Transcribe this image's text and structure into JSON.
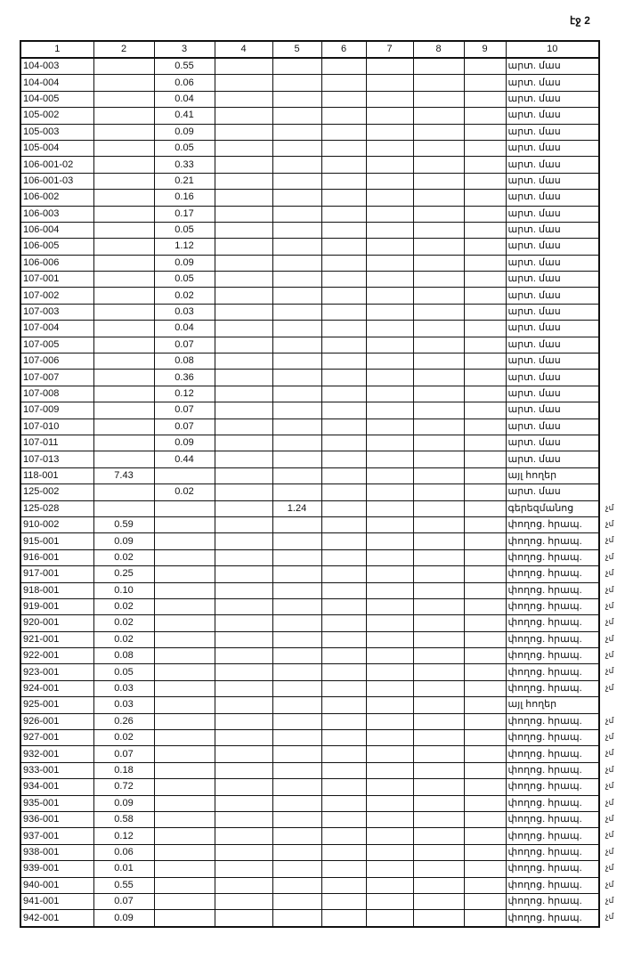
{
  "page_label": "էջ 2",
  "columns": [
    "1",
    "2",
    "3",
    "4",
    "5",
    "6",
    "7",
    "8",
    "9",
    "10"
  ],
  "rows": [
    [
      "104-003",
      "",
      "0.55",
      "",
      "",
      "",
      "",
      "",
      "",
      "արտ. մաս",
      ""
    ],
    [
      "104-004",
      "",
      "0.06",
      "",
      "",
      "",
      "",
      "",
      "",
      "արտ. մաս",
      ""
    ],
    [
      "104-005",
      "",
      "0.04",
      "",
      "",
      "",
      "",
      "",
      "",
      "արտ. մաս",
      ""
    ],
    [
      "105-002",
      "",
      "0.41",
      "",
      "",
      "",
      "",
      "",
      "",
      "արտ. մաս",
      ""
    ],
    [
      "105-003",
      "",
      "0.09",
      "",
      "",
      "",
      "",
      "",
      "",
      "արտ. մաս",
      ""
    ],
    [
      "105-004",
      "",
      "0.05",
      "",
      "",
      "",
      "",
      "",
      "",
      "արտ. մաս",
      ""
    ],
    [
      "106-001-02",
      "",
      "0.33",
      "",
      "",
      "",
      "",
      "",
      "",
      "արտ. մաս",
      ""
    ],
    [
      "106-001-03",
      "",
      "0.21",
      "",
      "",
      "",
      "",
      "",
      "",
      "արտ. մաս",
      ""
    ],
    [
      "106-002",
      "",
      "0.16",
      "",
      "",
      "",
      "",
      "",
      "",
      "արտ. մաս",
      ""
    ],
    [
      "106-003",
      "",
      "0.17",
      "",
      "",
      "",
      "",
      "",
      "",
      "արտ. մաս",
      ""
    ],
    [
      "106-004",
      "",
      "0.05",
      "",
      "",
      "",
      "",
      "",
      "",
      "արտ. մաս",
      ""
    ],
    [
      "106-005",
      "",
      "1.12",
      "",
      "",
      "",
      "",
      "",
      "",
      "արտ. մաս",
      ""
    ],
    [
      "106-006",
      "",
      "0.09",
      "",
      "",
      "",
      "",
      "",
      "",
      "արտ. մաս",
      ""
    ],
    [
      "107-001",
      "",
      "0.05",
      "",
      "",
      "",
      "",
      "",
      "",
      "արտ. մաս",
      ""
    ],
    [
      "107-002",
      "",
      "0.02",
      "",
      "",
      "",
      "",
      "",
      "",
      "արտ. մաս",
      ""
    ],
    [
      "107-003",
      "",
      "0.03",
      "",
      "",
      "",
      "",
      "",
      "",
      "արտ. մաս",
      ""
    ],
    [
      "107-004",
      "",
      "0.04",
      "",
      "",
      "",
      "",
      "",
      "",
      "արտ. մաս",
      ""
    ],
    [
      "107-005",
      "",
      "0.07",
      "",
      "",
      "",
      "",
      "",
      "",
      "արտ. մաս",
      ""
    ],
    [
      "107-006",
      "",
      "0.08",
      "",
      "",
      "",
      "",
      "",
      "",
      "արտ. մաս",
      ""
    ],
    [
      "107-007",
      "",
      "0.36",
      "",
      "",
      "",
      "",
      "",
      "",
      "արտ. մաս",
      ""
    ],
    [
      "107-008",
      "",
      "0.12",
      "",
      "",
      "",
      "",
      "",
      "",
      "արտ. մաս",
      ""
    ],
    [
      "107-009",
      "",
      "0.07",
      "",
      "",
      "",
      "",
      "",
      "",
      "արտ. մաս",
      ""
    ],
    [
      "107-010",
      "",
      "0.07",
      "",
      "",
      "",
      "",
      "",
      "",
      "արտ. մաս",
      ""
    ],
    [
      "107-011",
      "",
      "0.09",
      "",
      "",
      "",
      "",
      "",
      "",
      "արտ. մաս",
      ""
    ],
    [
      "107-013",
      "",
      "0.44",
      "",
      "",
      "",
      "",
      "",
      "",
      "արտ. մաս",
      ""
    ],
    [
      "118-001",
      "7.43",
      "",
      "",
      "",
      "",
      "",
      "",
      "",
      "այլ հողեր",
      ""
    ],
    [
      "125-002",
      "",
      "0.02",
      "",
      "",
      "",
      "",
      "",
      "",
      "արտ. մաս",
      ""
    ],
    [
      "125-028",
      "",
      "",
      "",
      "1.24",
      "",
      "",
      "",
      "",
      "գերեզմանոց",
      "չմ"
    ],
    [
      "910-002",
      "0.59",
      "",
      "",
      "",
      "",
      "",
      "",
      "",
      "փողոց. հրապ.",
      "չմ"
    ],
    [
      "915-001",
      "0.09",
      "",
      "",
      "",
      "",
      "",
      "",
      "",
      "փողոց. հրապ.",
      "չմ"
    ],
    [
      "916-001",
      "0.02",
      "",
      "",
      "",
      "",
      "",
      "",
      "",
      "փողոց. հրապ.",
      "չմ"
    ],
    [
      "917-001",
      "0.25",
      "",
      "",
      "",
      "",
      "",
      "",
      "",
      "փողոց. հրապ.",
      "չմ"
    ],
    [
      "918-001",
      "0.10",
      "",
      "",
      "",
      "",
      "",
      "",
      "",
      "փողոց. հրապ.",
      "չմ"
    ],
    [
      "919-001",
      "0.02",
      "",
      "",
      "",
      "",
      "",
      "",
      "",
      "փողոց. հրապ.",
      "չմ"
    ],
    [
      "920-001",
      "0.02",
      "",
      "",
      "",
      "",
      "",
      "",
      "",
      "փողոց. հրապ.",
      "չմ"
    ],
    [
      "921-001",
      "0.02",
      "",
      "",
      "",
      "",
      "",
      "",
      "",
      "փողոց. հրապ.",
      "չմ"
    ],
    [
      "922-001",
      "0.08",
      "",
      "",
      "",
      "",
      "",
      "",
      "",
      "փողոց. հրապ.",
      "չմ"
    ],
    [
      "923-001",
      "0.05",
      "",
      "",
      "",
      "",
      "",
      "",
      "",
      "փողոց. հրապ.",
      "չմ"
    ],
    [
      "924-001",
      "0.03",
      "",
      "",
      "",
      "",
      "",
      "",
      "",
      "փողոց. հրապ.",
      "չմ"
    ],
    [
      "925-001",
      "0.03",
      "",
      "",
      "",
      "",
      "",
      "",
      "",
      "այլ հողեր",
      ""
    ],
    [
      "926-001",
      "0.26",
      "",
      "",
      "",
      "",
      "",
      "",
      "",
      "փողոց. հրապ.",
      "չմ"
    ],
    [
      "927-001",
      "0.02",
      "",
      "",
      "",
      "",
      "",
      "",
      "",
      "փողոց. հրապ.",
      "չմ"
    ],
    [
      "932-001",
      "0.07",
      "",
      "",
      "",
      "",
      "",
      "",
      "",
      "փողոց. հրապ.",
      "չմ"
    ],
    [
      "933-001",
      "0.18",
      "",
      "",
      "",
      "",
      "",
      "",
      "",
      "փողոց. հրապ.",
      "չմ"
    ],
    [
      "934-001",
      "0.72",
      "",
      "",
      "",
      "",
      "",
      "",
      "",
      "փողոց. հրապ.",
      "չմ"
    ],
    [
      "935-001",
      "0.09",
      "",
      "",
      "",
      "",
      "",
      "",
      "",
      "փողոց. հրապ.",
      "չմ"
    ],
    [
      "936-001",
      "0.58",
      "",
      "",
      "",
      "",
      "",
      "",
      "",
      "փողոց. հրապ.",
      "չմ"
    ],
    [
      "937-001",
      "0.12",
      "",
      "",
      "",
      "",
      "",
      "",
      "",
      "փողոց. հրապ.",
      "չմ"
    ],
    [
      "938-001",
      "0.06",
      "",
      "",
      "",
      "",
      "",
      "",
      "",
      "փողոց. հրապ.",
      "չմ"
    ],
    [
      "939-001",
      "0.01",
      "",
      "",
      "",
      "",
      "",
      "",
      "",
      "փողոց. հրապ.",
      "չմ"
    ],
    [
      "940-001",
      "0.55",
      "",
      "",
      "",
      "",
      "",
      "",
      "",
      "փողոց. հրապ.",
      "չմ"
    ],
    [
      "941-001",
      "0.07",
      "",
      "",
      "",
      "",
      "",
      "",
      "",
      "փողոց. հրապ.",
      "չմ"
    ],
    [
      "942-001",
      "0.09",
      "",
      "",
      "",
      "",
      "",
      "",
      "",
      "փողոց. հրապ.",
      "չմ"
    ]
  ]
}
